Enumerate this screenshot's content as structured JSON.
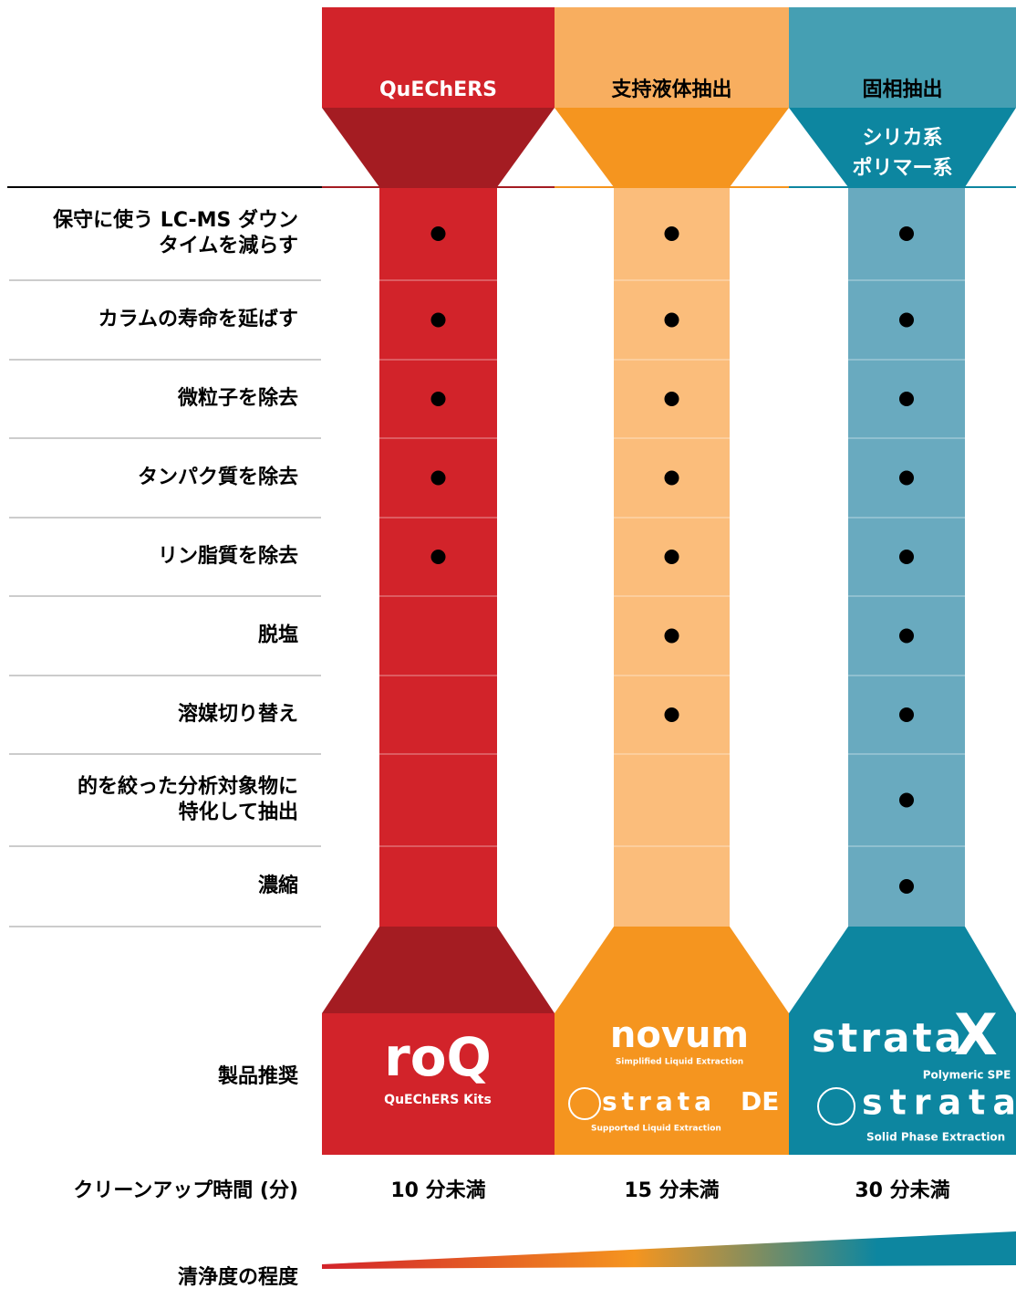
{
  "columns": [
    {
      "title": "QuEChERS",
      "subtitle": [],
      "time": "10 分未満",
      "products": [
        "roQ",
        "QuEChERS Kits"
      ]
    },
    {
      "title": "支持液体抽出",
      "subtitle": [],
      "time": "15 分未満",
      "products": [
        "novum",
        "Simplified Liquid Extraction",
        "strata",
        "DE",
        "Supported Liquid Extraction"
      ]
    },
    {
      "title": "固相抽出",
      "subtitle": [
        "シリカ系",
        "ポリマー系"
      ],
      "time": "30 分未満",
      "products": [
        "strata",
        "X",
        "Polymeric SPE",
        "strata",
        "Solid Phase Extraction"
      ]
    }
  ],
  "rows": [
    {
      "label": [
        "保守に使う LC-MS ダウン",
        "タイムを減らす"
      ],
      "checks": [
        true,
        true,
        true
      ]
    },
    {
      "label": [
        "カラムの寿命を延ばす"
      ],
      "checks": [
        true,
        true,
        true
      ]
    },
    {
      "label": [
        "微粒子を除去"
      ],
      "checks": [
        true,
        true,
        true
      ]
    },
    {
      "label": [
        "タンパク質を除去"
      ],
      "checks": [
        true,
        true,
        true
      ]
    },
    {
      "label": [
        "リン脂質を除去"
      ],
      "checks": [
        true,
        true,
        true
      ]
    },
    {
      "label": [
        "脱塩"
      ],
      "checks": [
        false,
        true,
        true
      ]
    },
    {
      "label": [
        "溶媒切り替え"
      ],
      "checks": [
        false,
        true,
        true
      ]
    },
    {
      "label": [
        "的を絞った分析対象物に",
        "特化して抽出"
      ],
      "checks": [
        false,
        false,
        true
      ]
    },
    {
      "label": [
        "濃縮"
      ],
      "checks": [
        false,
        false,
        true
      ]
    }
  ],
  "labels": {
    "products": "製品推奨",
    "time": "クリーンアップ時間 (分)",
    "cleanliness": "清浄度の程度"
  }
}
